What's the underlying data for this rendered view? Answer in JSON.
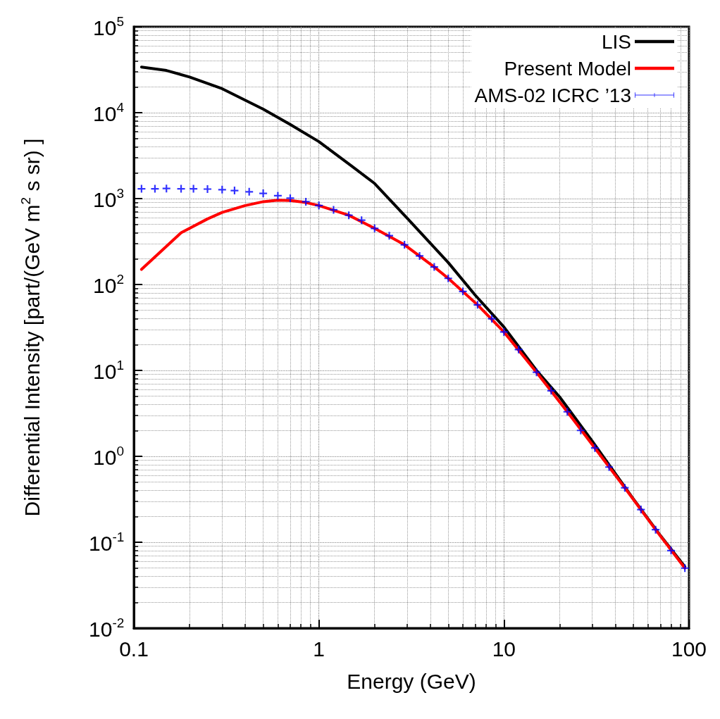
{
  "chart_data": {
    "type": "line",
    "xlabel": "Energy (GeV)",
    "ylabel": "Differential Intensity [part/(GeV m$^{2}$ s sr) ]",
    "log": "xy",
    "grid": true,
    "legend": "top right",
    "line_style": "solid",
    "xlim": [
      0.1,
      100
    ],
    "xticks": [
      0.1,
      1,
      10,
      100
    ],
    "ylim": [
      0.01,
      100000
    ],
    "yticks": [
      {
        "value": 0.01,
        "label": "10$^{-2}$"
      },
      {
        "value": 0.1,
        "label": "10$^{-1}$"
      },
      {
        "value": 1,
        "label": "10$^{0}$"
      },
      {
        "value": 10,
        "label": "10$^{1}$"
      },
      {
        "value": 100,
        "label": "10$^{2}$"
      },
      {
        "value": 1000,
        "label": "10$^{3}$"
      },
      {
        "value": 10000,
        "label": "10$^{4}$"
      },
      {
        "value": 100000,
        "label": "10$^{5}$"
      }
    ],
    "series": [
      {
        "name": "LIS",
        "color": "#000000",
        "x": [
          0.11,
          0.15,
          0.2,
          0.3,
          0.5,
          0.7,
          1,
          1.5,
          2,
          3,
          5,
          7,
          10,
          15,
          20,
          30,
          50,
          70,
          95
        ],
        "values": [
          34000,
          31000,
          26000,
          19000,
          11000,
          7300,
          4600,
          2400,
          1500,
          590,
          180,
          75,
          32,
          10,
          4.9,
          1.5,
          0.32,
          0.12,
          0.052
        ]
      },
      {
        "name": "Present Model",
        "color": "#ff0000",
        "x": [
          0.11,
          0.18,
          0.25,
          0.3,
          0.4,
          0.5,
          0.6,
          0.7,
          0.85,
          1,
          1.45,
          2,
          2.9,
          4.2,
          5,
          7.2,
          10,
          15,
          22,
          31,
          45,
          66,
          95
        ],
        "values": [
          150,
          400,
          580,
          690,
          830,
          920,
          960,
          950,
          900,
          830,
          640,
          450,
          290,
          160,
          118,
          58,
          28,
          9.5,
          3.3,
          1.25,
          0.43,
          0.14,
          0.05
        ]
      },
      {
        "name": "AMS-02 ICRC ’13",
        "type": "scatter",
        "marker": "cross",
        "color": "#0000ff",
        "x": [
          0.11,
          0.13,
          0.15,
          0.18,
          0.21,
          0.25,
          0.3,
          0.35,
          0.42,
          0.5,
          0.6,
          0.7,
          0.85,
          1,
          1.2,
          1.45,
          1.7,
          2,
          2.4,
          2.9,
          3.5,
          4.2,
          5,
          6,
          7.2,
          8.6,
          10,
          12,
          15,
          18,
          22,
          26,
          31,
          37,
          45,
          55,
          66,
          80,
          95
        ],
        "values": [
          1300,
          1300,
          1310,
          1300,
          1300,
          1290,
          1270,
          1240,
          1200,
          1150,
          1080,
          1010,
          920,
          830,
          740,
          640,
          560,
          450,
          370,
          290,
          215,
          160,
          118,
          83,
          58,
          40,
          28,
          17.5,
          9.5,
          5.8,
          3.3,
          2.0,
          1.25,
          0.75,
          0.43,
          0.24,
          0.14,
          0.08,
          0.05
        ]
      }
    ]
  }
}
